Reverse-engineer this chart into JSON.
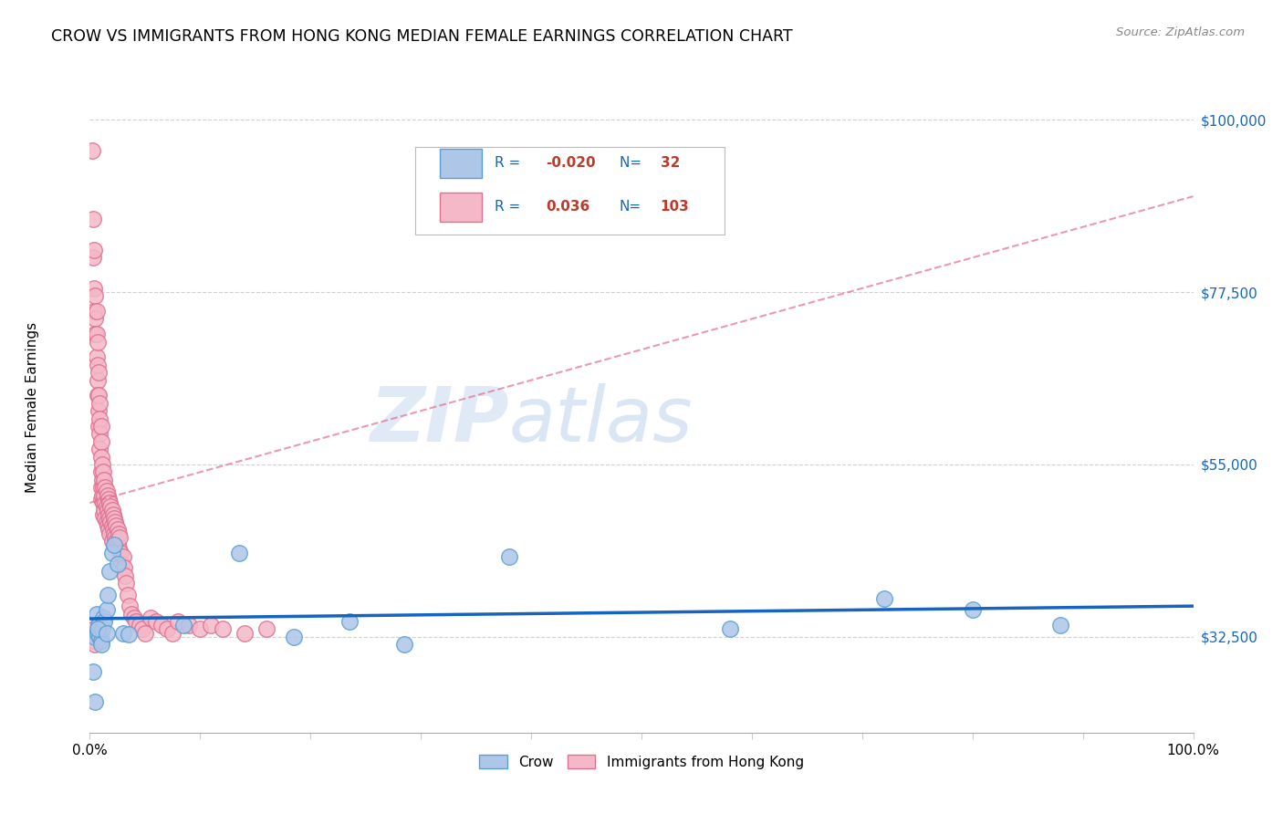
{
  "title": "CROW VS IMMIGRANTS FROM HONG KONG MEDIAN FEMALE EARNINGS CORRELATION CHART",
  "source": "Source: ZipAtlas.com",
  "ylabel": "Median Female Earnings",
  "legend_r_crow": "-0.020",
  "legend_n_crow": "32",
  "legend_r_hk": "0.036",
  "legend_n_hk": "103",
  "crow_color": "#aec6e8",
  "crow_edge_color": "#5a9fd4",
  "hk_color": "#f4b8c8",
  "hk_edge_color": "#e07090",
  "crow_line_color": "#1565c0",
  "hk_line_color": "#e07090",
  "label_color": "#1565c0",
  "value_color": "#c0392b",
  "watermark_zip": "ZIP",
  "watermark_atlas": "atlas",
  "crow_scatter_x": [
    0.003,
    0.005,
    0.006,
    0.007,
    0.008,
    0.009,
    0.01,
    0.011,
    0.012,
    0.013,
    0.015,
    0.016,
    0.018,
    0.02,
    0.022,
    0.025,
    0.03,
    0.035,
    0.085,
    0.135,
    0.185,
    0.235,
    0.285,
    0.38,
    0.58,
    0.72,
    0.8,
    0.88,
    0.005,
    0.007,
    0.01,
    0.015
  ],
  "crow_scatter_y": [
    28000,
    32500,
    35500,
    33000,
    34000,
    32500,
    32000,
    33500,
    35000,
    34500,
    36000,
    38000,
    41000,
    43500,
    44500,
    42000,
    33000,
    32800,
    34000,
    43500,
    32500,
    34500,
    31500,
    43000,
    33500,
    37500,
    36000,
    34000,
    24000,
    33500,
    31500,
    33000
  ],
  "hk_scatter_x": [
    0.002,
    0.003,
    0.003,
    0.004,
    0.004,
    0.004,
    0.005,
    0.005,
    0.005,
    0.006,
    0.006,
    0.006,
    0.007,
    0.007,
    0.007,
    0.007,
    0.008,
    0.008,
    0.008,
    0.008,
    0.009,
    0.009,
    0.009,
    0.009,
    0.01,
    0.01,
    0.01,
    0.01,
    0.01,
    0.01,
    0.011,
    0.011,
    0.011,
    0.012,
    0.012,
    0.012,
    0.012,
    0.013,
    0.013,
    0.013,
    0.014,
    0.014,
    0.014,
    0.015,
    0.015,
    0.015,
    0.016,
    0.016,
    0.016,
    0.017,
    0.017,
    0.017,
    0.018,
    0.018,
    0.018,
    0.019,
    0.019,
    0.02,
    0.02,
    0.02,
    0.021,
    0.021,
    0.022,
    0.022,
    0.023,
    0.023,
    0.024,
    0.024,
    0.025,
    0.025,
    0.026,
    0.026,
    0.027,
    0.028,
    0.029,
    0.03,
    0.031,
    0.032,
    0.033,
    0.034,
    0.036,
    0.038,
    0.04,
    0.042,
    0.045,
    0.048,
    0.05,
    0.055,
    0.06,
    0.065,
    0.07,
    0.075,
    0.08,
    0.09,
    0.1,
    0.11,
    0.12,
    0.14,
    0.16,
    0.003,
    0.004,
    0.005,
    0.006
  ],
  "hk_scatter_y": [
    96000,
    87000,
    82000,
    83000,
    78000,
    75000,
    77000,
    74000,
    72000,
    75000,
    72000,
    69000,
    71000,
    68000,
    66000,
    64000,
    67000,
    64000,
    62000,
    60000,
    63000,
    61000,
    59000,
    57000,
    60000,
    58000,
    56000,
    54000,
    52000,
    50500,
    55000,
    53000,
    51000,
    54000,
    52000,
    50000,
    48500,
    53000,
    51000,
    49000,
    52000,
    50000,
    48000,
    51500,
    49500,
    47500,
    51000,
    49000,
    47000,
    50500,
    48500,
    46500,
    50000,
    48000,
    46000,
    49500,
    47500,
    49000,
    47000,
    45000,
    48500,
    46500,
    48000,
    46000,
    47500,
    45500,
    47000,
    45000,
    46500,
    44500,
    46000,
    44000,
    45500,
    43500,
    42000,
    43000,
    41500,
    40500,
    39500,
    38000,
    36500,
    35500,
    35000,
    34500,
    34000,
    33500,
    33000,
    35000,
    34500,
    34000,
    33500,
    33000,
    34500,
    34000,
    33500,
    34000,
    33500,
    33000,
    33500,
    32000,
    33500,
    31500,
    33000
  ]
}
